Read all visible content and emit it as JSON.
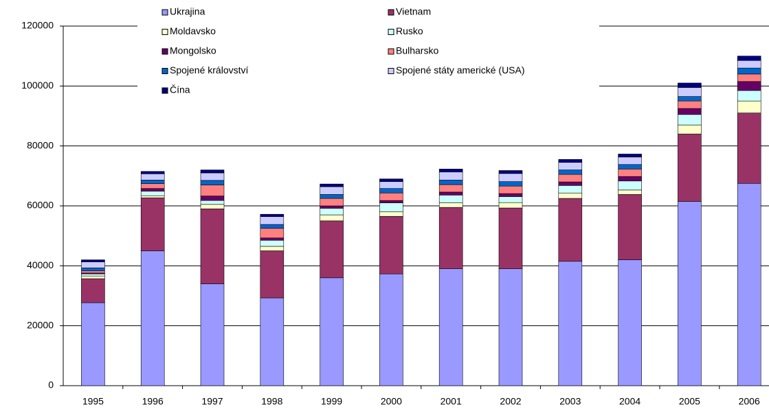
{
  "chart_data": {
    "type": "stacked_bar",
    "categories": [
      "1995",
      "1996",
      "1997",
      "1998",
      "1999",
      "2000",
      "2001",
      "2002",
      "2003",
      "2004",
      "2005",
      "2006"
    ],
    "series": [
      {
        "name": "Ukrajina",
        "color": "#9999ff",
        "values": [
          27700,
          45000,
          34000,
          29300,
          36000,
          37300,
          39000,
          39000,
          41500,
          42000,
          61500,
          67500
        ]
      },
      {
        "name": "Vietnam",
        "color": "#993366",
        "values": [
          8000,
          17700,
          25000,
          15700,
          19000,
          19200,
          20500,
          20300,
          21000,
          21800,
          22500,
          23500
        ]
      },
      {
        "name": "Moldavsko",
        "color": "#ffffcc",
        "values": [
          900,
          700,
          1500,
          1500,
          2000,
          1500,
          1500,
          1800,
          1800,
          1500,
          3000,
          4000
        ]
      },
      {
        "name": "Rusko",
        "color": "#ccffff",
        "values": [
          700,
          1500,
          1300,
          2000,
          2200,
          3000,
          2600,
          2000,
          2500,
          3000,
          3500,
          3500
        ]
      },
      {
        "name": "Mongolsko",
        "color": "#660066",
        "values": [
          300,
          900,
          1500,
          800,
          800,
          800,
          1000,
          1000,
          1200,
          1500,
          2000,
          3000
        ]
      },
      {
        "name": "Bulharsko",
        "color": "#ff8080",
        "values": [
          700,
          1600,
          3700,
          3200,
          2500,
          2500,
          2500,
          2500,
          2500,
          2500,
          2500,
          2500
        ]
      },
      {
        "name": "Spojené království",
        "color": "#0066cc",
        "values": [
          1000,
          1200,
          1500,
          1300,
          1300,
          1500,
          1500,
          1500,
          1500,
          1500,
          1500,
          2000
        ]
      },
      {
        "name": "Spojené státy americké (USA)",
        "color": "#ccccff",
        "values": [
          2000,
          2100,
          2500,
          2600,
          2600,
          2300,
          2700,
          2700,
          2500,
          2500,
          3000,
          2500
        ]
      },
      {
        "name": "Čína",
        "color": "#000080",
        "values": [
          700,
          800,
          1000,
          800,
          900,
          900,
          1000,
          1000,
          1000,
          1000,
          1500,
          1500
        ]
      }
    ],
    "ylim": [
      0,
      120000
    ],
    "yticks": [
      0,
      20000,
      40000,
      60000,
      80000,
      100000,
      120000
    ],
    "grid": true,
    "legend": "top"
  }
}
